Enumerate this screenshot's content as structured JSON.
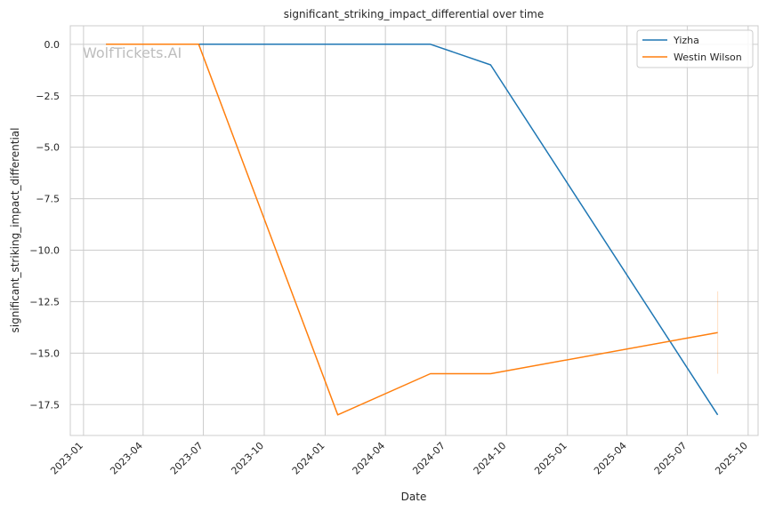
{
  "chart_data": {
    "type": "line",
    "title": "significant_striking_impact_differential over time",
    "xlabel": "Date",
    "ylabel": "significant_striking_impact_differential",
    "watermark": "WolfTickets.AI",
    "x_ticks": [
      "2023-01",
      "2023-04",
      "2023-07",
      "2023-10",
      "2024-01",
      "2024-04",
      "2024-07",
      "2024-10",
      "2025-01",
      "2025-04",
      "2025-07",
      "2025-10"
    ],
    "y_ticks": [
      0.0,
      -2.5,
      -5.0,
      -7.5,
      -10.0,
      -12.5,
      -15.0,
      -17.5
    ],
    "y_tick_labels": [
      "0.0",
      "−2.5",
      "−5.0",
      "−7.5",
      "−10.0",
      "−12.5",
      "−15.0",
      "−17.5"
    ],
    "xlim": [
      "2022-12-12",
      "2025-10-16"
    ],
    "ylim": [
      -19.0,
      0.9
    ],
    "grid": true,
    "legend_position": "top-right",
    "series": [
      {
        "name": "Yizha",
        "color": "#1f77b4",
        "x": [
          "2023-02-04",
          "2024-06-08",
          "2024-09-07",
          "2025-08-16"
        ],
        "y": [
          0,
          0,
          -1,
          -18
        ]
      },
      {
        "name": "Westin Wilson",
        "color": "#ff7f0e",
        "x": [
          "2023-02-04",
          "2023-06-24",
          "2024-01-20",
          "2024-06-08",
          "2024-09-07",
          "2025-08-16"
        ],
        "y": [
          0,
          0,
          -18,
          -16,
          -16,
          -14
        ]
      }
    ],
    "error_bar": {
      "x": "2025-08-16",
      "low": -16,
      "high": -12,
      "color": "#ff7f0e"
    }
  }
}
